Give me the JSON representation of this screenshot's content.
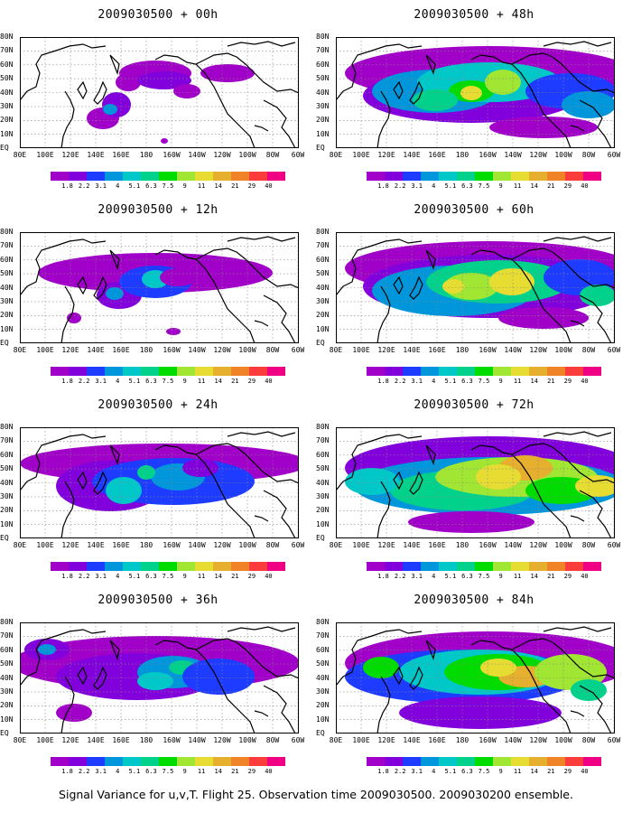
{
  "panels": [
    {
      "title": "2009030500 + 00h"
    },
    {
      "title": "2009030500 + 48h"
    },
    {
      "title": "2009030500 + 12h"
    },
    {
      "title": "2009030500 + 60h"
    },
    {
      "title": "2009030500 + 24h"
    },
    {
      "title": "2009030500 + 72h"
    },
    {
      "title": "2009030500 + 36h"
    },
    {
      "title": "2009030500 + 84h"
    }
  ],
  "lat_labels": [
    "80N",
    "70N",
    "60N",
    "50N",
    "40N",
    "30N",
    "20N",
    "10N",
    "EQ"
  ],
  "lon_labels": [
    "80E",
    "100E",
    "120E",
    "140E",
    "160E",
    "180",
    "160W",
    "140W",
    "120W",
    "100W",
    "80W",
    "60W"
  ],
  "colorbar": {
    "ticks": [
      "1.8",
      "2.2",
      "3.1",
      "4",
      "5.1",
      "6.3",
      "7.5",
      "9",
      "11",
      "14",
      "21",
      "29",
      "40"
    ],
    "colors": [
      "#a000c8",
      "#8200dc",
      "#1e3cff",
      "#0096dc",
      "#00c8c8",
      "#00d28c",
      "#00dc00",
      "#a0e632",
      "#e6dc32",
      "#e6af2d",
      "#f08228",
      "#fa3c3c",
      "#f00082"
    ]
  },
  "caption": "Signal Variance for u,v,T. Flight 25. Observation time 2009030500. 2009030200 ensemble."
}
